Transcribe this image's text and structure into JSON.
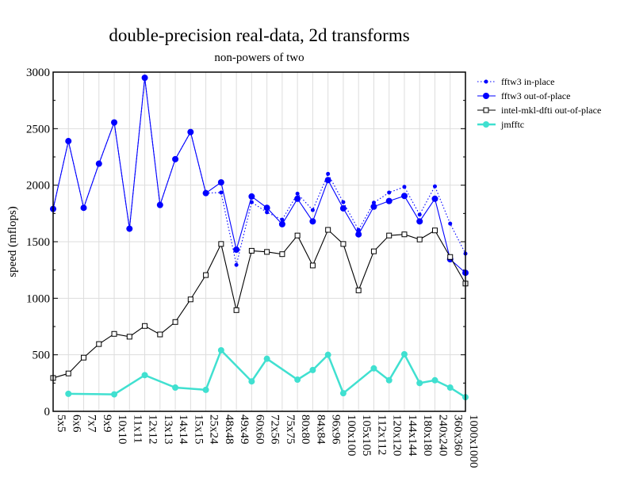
{
  "chart_data": {
    "type": "line",
    "title": "double-precision real-data, 2d transforms",
    "subtitle": "non-powers of two",
    "xlabel": "",
    "ylabel": "speed (mflops)",
    "ylim": [
      0,
      3000
    ],
    "yticks": [
      0,
      500,
      1000,
      1500,
      2000,
      2500,
      3000
    ],
    "grid": true,
    "legend_position": "right",
    "categories": [
      "5x5",
      "6x6",
      "7x7",
      "9x9",
      "10x10",
      "11x11",
      "12x12",
      "13x13",
      "14x14",
      "15x15",
      "25x24",
      "48x48",
      "49x49",
      "60x60",
      "72x56",
      "75x75",
      "80x80",
      "84x84",
      "96x96",
      "100x100",
      "105x105",
      "112x112",
      "120x120",
      "144x144",
      "180x180",
      "240x240",
      "360x360",
      "1000x1000"
    ],
    "series": [
      {
        "name": "fftw3 in-place",
        "color": "#0000ff",
        "style": "dotted",
        "marker": "small-dot",
        "values": [
          1790,
          2390,
          1800,
          2190,
          2555,
          1615,
          2950,
          1825,
          2230,
          2470,
          1930,
          1935,
          1295,
          1850,
          1760,
          1695,
          1925,
          1780,
          2100,
          1850,
          1605,
          1845,
          1935,
          1985,
          1740,
          1990,
          1660,
          1395
        ]
      },
      {
        "name": "fftw3 out-of-place",
        "color": "#0000ff",
        "style": "solid",
        "marker": "dot",
        "values": [
          1790,
          2390,
          1800,
          2190,
          2555,
          1615,
          2950,
          1825,
          2230,
          2470,
          1930,
          2025,
          1430,
          1900,
          1800,
          1655,
          1880,
          1680,
          2045,
          1795,
          1565,
          1810,
          1860,
          1905,
          1680,
          1880,
          1345,
          1225
        ]
      },
      {
        "name": "intel-mkl-dfti out-of-place",
        "color": "#000000",
        "style": "solid",
        "marker": "square",
        "values": [
          295,
          335,
          475,
          595,
          685,
          660,
          755,
          680,
          790,
          990,
          1205,
          1480,
          895,
          1420,
          1410,
          1390,
          1555,
          1290,
          1605,
          1480,
          1070,
          1415,
          1555,
          1565,
          1520,
          1600,
          1365,
          1130
        ]
      },
      {
        "name": "jmfftc",
        "color": "#40e0d0",
        "style": "solid-thick",
        "marker": "dot",
        "values": [
          null,
          155,
          null,
          null,
          150,
          null,
          320,
          null,
          210,
          null,
          190,
          540,
          null,
          265,
          465,
          null,
          280,
          365,
          500,
          160,
          null,
          380,
          275,
          505,
          250,
          275,
          210,
          125
        ]
      }
    ]
  }
}
